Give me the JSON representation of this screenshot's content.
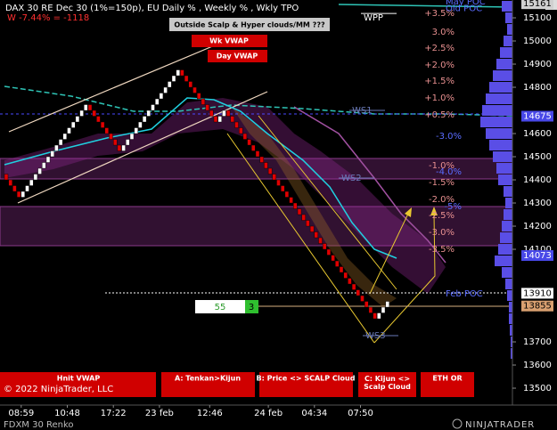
{
  "header": {
    "title": "DAX 30 RE Dec 30 (1%=150p), EU Daily % , Weekly % , Wkly TPO",
    "weekly_change": "W -7.44% = -1118",
    "copyright": "© 2022 NinjaTrader, LLC",
    "instrument": "FDXM 30 Renko",
    "brand": "NINJATRADER",
    "corner_icon": "F"
  },
  "buttons_top": [
    "Outside Scalp & Hyper clouds/MM ???",
    "Wk VWAP",
    "Day VWAP"
  ],
  "buttons_bottom": [
    "Hnit VWAP",
    "A: Tenkan>Kijun",
    "B: Price <> SCALP Cloud",
    "C: Kijun <> Scalp Cloud",
    "ETH OR"
  ],
  "order_box": {
    "quantity": "55",
    "count": "3"
  },
  "chart_data": {
    "type": "renko",
    "brick_size": 25,
    "up_color": "#ffffff",
    "down_color": "#e00000",
    "closes": [
      14400,
      14375,
      14350,
      14325,
      14350,
      14375,
      14400,
      14425,
      14450,
      14475,
      14500,
      14525,
      14550,
      14575,
      14600,
      14625,
      14650,
      14675,
      14700,
      14725,
      14700,
      14675,
      14650,
      14625,
      14600,
      14575,
      14550,
      14525,
      14550,
      14575,
      14600,
      14625,
      14650,
      14675,
      14700,
      14725,
      14750,
      14775,
      14800,
      14825,
      14850,
      14875,
      14850,
      14825,
      14800,
      14775,
      14750,
      14725,
      14700,
      14675,
      14650,
      14675,
      14700,
      14675,
      14650,
      14625,
      14600,
      14575,
      14550,
      14525,
      14500,
      14475,
      14450,
      14425,
      14400,
      14375,
      14350,
      14325,
      14300,
      14275,
      14250,
      14225,
      14200,
      14175,
      14150,
      14125,
      14100,
      14075,
      14050,
      14025,
      14000,
      13975,
      13950,
      13925,
      13900,
      13875,
      13850,
      13825,
      13800,
      13825,
      13850,
      13875
    ],
    "categories": [
      null,
      null,
      null,
      null,
      "08:59",
      null,
      null,
      null,
      null,
      null,
      null,
      null,
      null,
      null,
      null,
      "10:48",
      null,
      null,
      null,
      null,
      null,
      null,
      null,
      null,
      null,
      null,
      "17:22",
      null,
      null,
      null,
      null,
      null,
      null,
      null,
      null,
      null,
      null,
      "23 feb",
      null,
      null,
      null,
      null,
      null,
      null,
      null,
      null,
      null,
      null,
      null,
      "12:46",
      null,
      null,
      null,
      null,
      null,
      null,
      null,
      null,
      null,
      null,
      null,
      null,
      null,
      "24 feb",
      null,
      null,
      null,
      null,
      null,
      null,
      null,
      null,
      null,
      null,
      "04:34",
      null,
      null,
      null,
      null,
      null,
      null,
      null,
      null,
      null,
      null,
      "07:50",
      null,
      null,
      null,
      null,
      null,
      null
    ],
    "ylim": [
      13427,
      15177
    ],
    "yticks": [
      15100,
      15000,
      14900,
      14800,
      14600,
      14500,
      14400,
      14300,
      14200,
      14100,
      13700,
      13600,
      13500
    ],
    "price_markers": [
      15161,
      14675,
      14073,
      13910,
      13855
    ],
    "price_marker_colors": [
      "#d0d0d0",
      "#4848e8",
      "#4848e8",
      "#ffffff",
      "#d9a070"
    ],
    "levels": [
      {
        "value": 15119,
        "label": "WPP"
      },
      {
        "value": 14700,
        "label": "WS1"
      },
      {
        "value": 14408,
        "label": "WS2"
      },
      {
        "value": 13727,
        "label": "WS3"
      }
    ],
    "poc_labels": [
      {
        "value": 15170,
        "label": "May POC"
      },
      {
        "value": 15140,
        "label": "Old POC"
      },
      {
        "value": 13908,
        "label": "Feb POC"
      }
    ],
    "pct_levels": [
      {
        "value": 15119,
        "label": "+3.5%"
      },
      {
        "value": 15038,
        "label": "3.0%"
      },
      {
        "value": 14969,
        "label": "+2.5%"
      },
      {
        "value": 14896,
        "label": "+2.0%"
      },
      {
        "value": 14827,
        "label": "+1.5%"
      },
      {
        "value": 14754,
        "label": "+1.0%"
      },
      {
        "value": 14681,
        "label": "+0.5%"
      },
      {
        "value": 14462,
        "label": "-1.0%"
      },
      {
        "value": 14388,
        "label": "-1.5%"
      },
      {
        "value": 14315,
        "label": "-2.0%"
      },
      {
        "value": 14246,
        "label": "-2.5%"
      },
      {
        "value": 14173,
        "label": "-3.0%"
      },
      {
        "value": 14100,
        "label": "-3.5%"
      }
    ],
    "pct_levels_weekly": [
      {
        "value": 14588,
        "label": "-3.0%"
      },
      {
        "value": 14435,
        "label": "-4.0%"
      },
      {
        "value": 14285,
        "label": "-5%"
      }
    ],
    "volume_profile": {
      "color": "#5a4ee6",
      "prices": [
        15150,
        15100,
        15050,
        15000,
        14950,
        14900,
        14850,
        14800,
        14750,
        14700,
        14650,
        14600,
        14550,
        14500,
        14450,
        14400,
        14350,
        14300,
        14250,
        14200,
        14150,
        14100,
        14050,
        14000,
        13950,
        13900,
        13850,
        13800,
        13750,
        13700,
        13650
      ],
      "values": [
        12,
        8,
        6,
        10,
        14,
        18,
        22,
        26,
        30,
        34,
        36,
        30,
        26,
        22,
        18,
        16,
        10,
        8,
        10,
        12,
        14,
        16,
        20,
        12,
        8,
        6,
        4,
        4,
        3,
        2,
        2
      ]
    }
  }
}
